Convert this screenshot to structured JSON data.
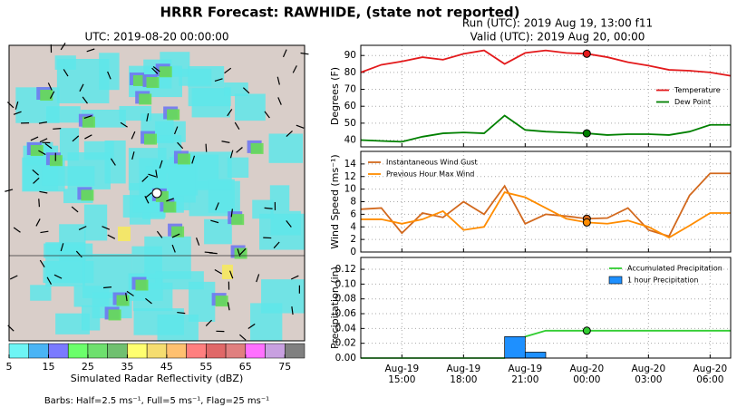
{
  "title": "HRRR Forecast: RAWHIDE, (state not reported)",
  "run": "Run (UTC): 2019 Aug 19, 13:00 f11",
  "valid": "Valid (UTC): 2019 Aug 20, 00:00",
  "map": {
    "title": "UTC: 2019-08-20 00:00:00",
    "colorbar": {
      "label": "Simulated Radar Reflectivity (dBZ)",
      "lim": [
        5,
        80
      ],
      "ticks": [
        5,
        15,
        25,
        35,
        45,
        55,
        65,
        75
      ],
      "colors": [
        "#6ef5f5",
        "#4ab4f5",
        "#7a7aff",
        "#6bff6b",
        "#6ee06e",
        "#70c070",
        "#ffff70",
        "#f5dd70",
        "#ffc070",
        "#ff7f7f",
        "#e06868",
        "#e07f7f",
        "#ff70ff",
        "#c8a0e0",
        "#808080"
      ]
    },
    "note": "Barbs: Half=2.5 ms⁻¹, Full=5 ms⁻¹, Flag=25 ms⁻¹"
  },
  "chart_data": [
    {
      "type": "line",
      "ylabel": "Degrees (F)",
      "x": [
        13,
        14,
        15,
        16,
        17,
        18,
        19,
        20,
        21,
        22,
        23,
        24,
        25,
        26,
        27,
        28,
        29,
        30,
        31
      ],
      "xlim": [
        13,
        31
      ],
      "ylim": [
        36,
        96
      ],
      "yticks": [
        40,
        50,
        60,
        70,
        80,
        90
      ],
      "grid": true,
      "legend": "right",
      "marker_x": 24,
      "series": [
        {
          "name": "Temperature",
          "color": "#e31a1c",
          "values": [
            80,
            84.5,
            86.5,
            89,
            87.5,
            91,
            93,
            85,
            91.5,
            93,
            91.5,
            91,
            89,
            86,
            84,
            81.5,
            81,
            80,
            78
          ]
        },
        {
          "name": "Dew Point",
          "color": "#008000",
          "values": [
            40,
            39.5,
            39,
            42,
            44,
            44.5,
            44,
            54.5,
            46,
            45,
            44.5,
            44,
            43,
            43.5,
            43.5,
            43,
            45,
            49,
            49
          ]
        }
      ]
    },
    {
      "type": "line",
      "ylabel": "Wind Speed (ms⁻¹)",
      "x": [
        13,
        14,
        15,
        16,
        17,
        18,
        19,
        20,
        21,
        22,
        23,
        24,
        25,
        26,
        27,
        28,
        29,
        30,
        31
      ],
      "xlim": [
        13,
        31
      ],
      "ylim": [
        0,
        16
      ],
      "yticks": [
        0,
        2,
        4,
        6,
        8,
        10,
        12,
        14
      ],
      "grid": true,
      "legend": "upper left",
      "marker_x": 24,
      "series": [
        {
          "name": "Instantaneous Wind Gust",
          "color": "#d2691e",
          "values": [
            6.8,
            7,
            3,
            6.2,
            5.5,
            8,
            6,
            10.5,
            4.5,
            6,
            5.7,
            5.3,
            5.4,
            7,
            3.5,
            2.5,
            9,
            12.5,
            12.5
          ]
        },
        {
          "name": "Previous Hour Max Wind",
          "color": "#ff8c00",
          "values": [
            5.2,
            5.2,
            4.5,
            5.2,
            6.5,
            3.5,
            4,
            9.5,
            8.7,
            7,
            5.3,
            4.7,
            4.5,
            5,
            4,
            2.3,
            4.2,
            6.2,
            6.2
          ]
        }
      ]
    },
    {
      "type": "line",
      "ylabel": "Precipitation (in)",
      "x": [
        13,
        14,
        15,
        16,
        17,
        18,
        19,
        20,
        21,
        22,
        23,
        24,
        25,
        26,
        27,
        28,
        29,
        30,
        31
      ],
      "xlim": [
        13,
        31
      ],
      "ylim": [
        0,
        0.136
      ],
      "yticks": [
        {
          "value": 0,
          "label": "0.00"
        },
        {
          "value": 0.02,
          "label": "0.02"
        },
        {
          "value": 0.04,
          "label": "0.04"
        },
        {
          "value": 0.06,
          "label": "0.06"
        },
        {
          "value": 0.08,
          "label": "0.08"
        },
        {
          "value": 0.1,
          "label": "0.10"
        },
        {
          "value": 0.12,
          "label": "0.12"
        }
      ],
      "xticks": [
        {
          "value": 15,
          "label": "Aug-19\n15:00"
        },
        {
          "value": 18,
          "label": "Aug-19\n18:00"
        },
        {
          "value": 21,
          "label": "Aug-19\n21:00"
        },
        {
          "value": 24,
          "label": "Aug-20\n00:00"
        },
        {
          "value": 27,
          "label": "Aug-20\n03:00"
        },
        {
          "value": 30,
          "label": "Aug-20\n06:00"
        }
      ],
      "grid": true,
      "legend": "upper right",
      "marker_x": 24,
      "series": [
        {
          "name": "Accumulated Precipitation",
          "color": "#32cd32",
          "values": [
            0,
            0,
            0,
            0,
            0,
            0,
            0,
            0,
            0.029,
            0.037,
            0.037,
            0.037,
            0.037,
            0.037,
            0.037,
            0.037,
            0.037,
            0.037,
            0.037
          ]
        },
        {
          "name": "1 hour Precipitation",
          "type": "bar",
          "color": "#1e90ff",
          "values": [
            0,
            0,
            0,
            0,
            0,
            0,
            0,
            0,
            0.029,
            0.008,
            0,
            0,
            0,
            0,
            0,
            0,
            0,
            0,
            0
          ]
        }
      ]
    }
  ]
}
